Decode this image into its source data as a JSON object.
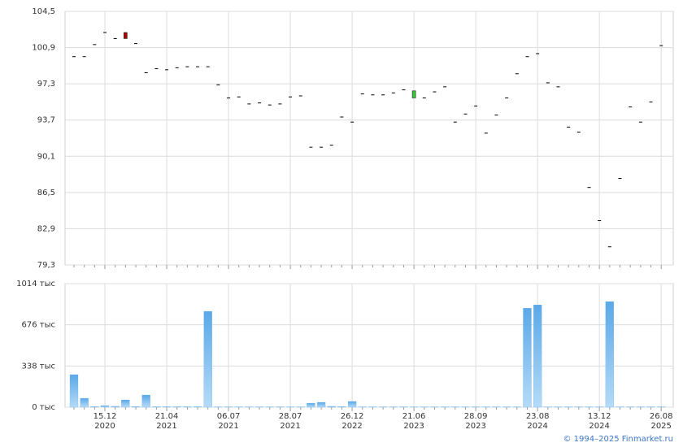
{
  "chart_data": [
    {
      "type": "candlestick",
      "ylim": [
        79.3,
        104.5
      ],
      "yticks": [
        {
          "value": 79.3,
          "label": "79,3"
        },
        {
          "value": 82.9,
          "label": "82,9"
        },
        {
          "value": 86.5,
          "label": "86,5"
        },
        {
          "value": 90.1,
          "label": "90,1"
        },
        {
          "value": 93.7,
          "label": "93,7"
        },
        {
          "value": 97.3,
          "label": "97,3"
        },
        {
          "value": 100.9,
          "label": "100,9"
        },
        {
          "value": 104.5,
          "label": "104,5"
        }
      ],
      "grid": true,
      "colors": {
        "up": "#33cc33",
        "down": "#aa0000",
        "flat": "#000000"
      },
      "open": [
        100.0,
        100.0,
        101.2,
        102.4,
        101.8,
        102.4,
        101.3,
        98.4,
        98.8,
        98.7,
        98.9,
        99.0,
        99.0,
        99.0,
        97.2,
        95.9,
        96.0,
        95.3,
        95.4,
        95.2,
        95.3,
        96.0,
        96.1,
        91.0,
        91.0,
        91.2,
        94.0,
        93.5,
        96.3,
        96.2,
        96.2,
        96.4,
        96.7,
        95.9,
        95.9,
        96.5,
        97.0,
        93.5,
        94.3,
        95.1,
        92.4,
        94.2,
        95.9,
        98.3,
        100.0,
        100.3,
        97.4,
        97.0,
        93.0,
        92.5,
        87.0,
        83.7,
        81.1,
        87.9,
        95.0,
        93.5,
        95.5,
        101.1
      ],
      "close": [
        100.0,
        100.0,
        101.2,
        102.4,
        101.8,
        101.8,
        101.3,
        98.4,
        98.8,
        98.7,
        98.9,
        99.0,
        99.0,
        99.0,
        97.2,
        95.9,
        96.0,
        95.3,
        95.4,
        95.2,
        95.3,
        96.0,
        96.1,
        91.0,
        91.0,
        91.2,
        94.0,
        93.5,
        96.3,
        96.2,
        96.2,
        96.4,
        96.7,
        96.6,
        95.9,
        96.5,
        97.0,
        93.5,
        94.3,
        95.1,
        92.4,
        94.2,
        95.9,
        98.3,
        100.0,
        100.3,
        97.4,
        97.0,
        93.0,
        92.5,
        87.0,
        83.7,
        81.1,
        87.9,
        95.0,
        93.5,
        95.5,
        101.1
      ]
    },
    {
      "type": "bar",
      "ylim": [
        0,
        1014
      ],
      "yticks": [
        {
          "value": 0,
          "label": "0 тыс"
        },
        {
          "value": 338,
          "label": "338 тыс"
        },
        {
          "value": 676,
          "label": "676 тыс"
        },
        {
          "value": 1014,
          "label": "1014 тыс"
        }
      ],
      "grid": true,
      "color": "#6fb4ea",
      "categories": [
        null,
        null,
        null,
        "15.12\n2020",
        null,
        null,
        null,
        null,
        null,
        "21.04\n2021",
        null,
        null,
        null,
        null,
        null,
        "06.07\n2021",
        null,
        null,
        null,
        null,
        null,
        "28.07\n2021",
        null,
        null,
        null,
        null,
        null,
        "26.12\n2022",
        null,
        null,
        null,
        null,
        null,
        "21.06\n2023",
        null,
        null,
        null,
        null,
        null,
        "28.09\n2023",
        null,
        null,
        null,
        null,
        null,
        "23.08\n2024",
        null,
        null,
        null,
        null,
        null,
        "13.12\n2024",
        null,
        null,
        null,
        null,
        null,
        "26.08\n2025"
      ],
      "values": [
        267,
        73,
        5,
        13,
        7,
        60,
        5,
        100,
        4,
        4,
        4,
        4,
        4,
        787,
        3,
        3,
        3,
        3,
        3,
        3,
        3,
        3,
        3,
        33,
        40,
        7,
        5,
        47,
        3,
        3,
        3,
        3,
        3,
        3,
        3,
        3,
        3,
        3,
        3,
        3,
        3,
        3,
        3,
        3,
        813,
        840,
        3,
        3,
        3,
        3,
        3,
        3,
        867,
        3,
        3,
        3,
        3,
        3
      ]
    }
  ],
  "watermark": "© 1994–2025 Finmarket.ru"
}
